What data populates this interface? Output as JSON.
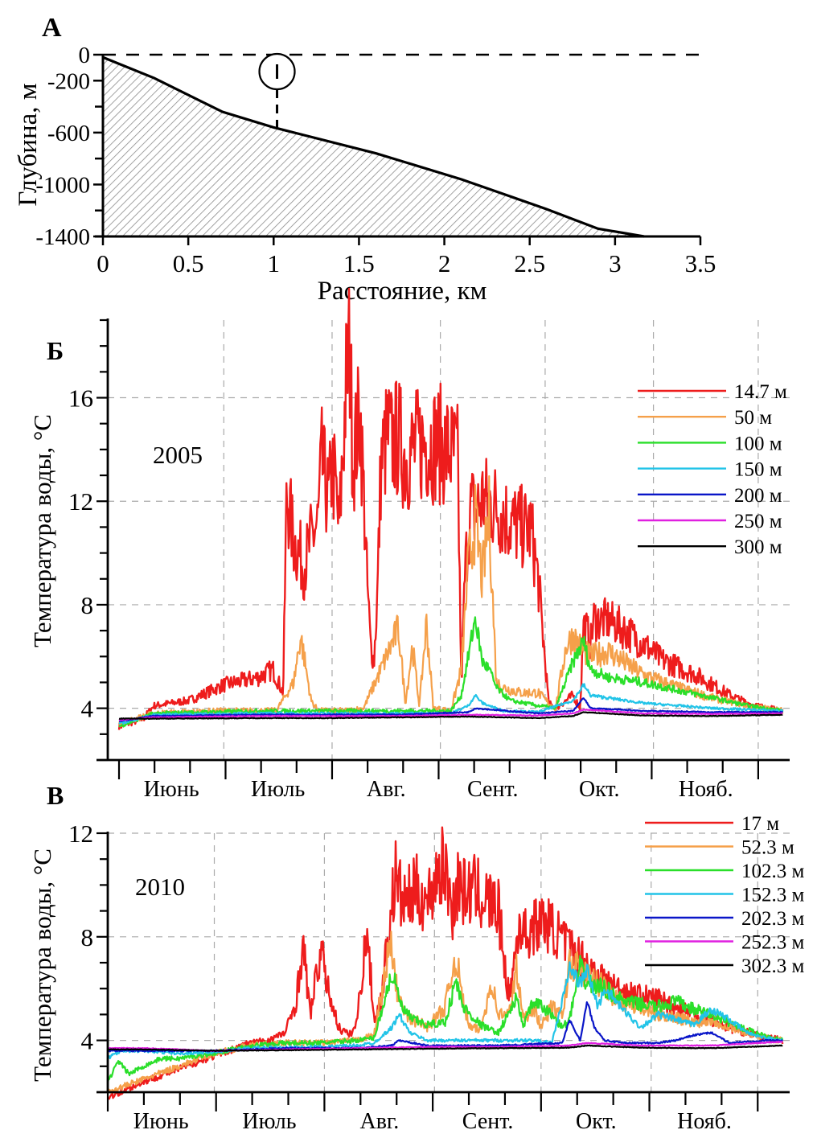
{
  "chart_data": [
    {
      "panel": "A",
      "type": "area",
      "panel_label": "А",
      "xlabel": "Расстояние, км",
      "ylabel": "Глубина, м",
      "xlim": [
        0,
        3.5
      ],
      "ylim": [
        -1400,
        0
      ],
      "xticks": [
        "0",
        "0.5",
        "1",
        "1.5",
        "2",
        "2.5",
        "3",
        "3.5"
      ],
      "xtick_values": [
        0,
        0.5,
        1,
        1.5,
        2,
        2.5,
        3,
        3.5
      ],
      "yticks": [
        "0",
        "-200",
        "-600",
        "-1000",
        "-1400"
      ],
      "ytick_values": [
        0,
        -200,
        -600,
        -1000,
        -1400
      ],
      "yminor_values": [
        -400,
        -800,
        -1200
      ],
      "surface_level": 0,
      "profile": {
        "x": [
          0,
          0.3,
          0.7,
          1.0,
          1.6,
          2.1,
          2.6,
          2.9,
          3.17
        ],
        "y": [
          -20,
          -180,
          -440,
          -560,
          -760,
          -960,
          -1190,
          -1340,
          -1400
        ]
      },
      "mooring": {
        "label": "I",
        "x": 1.02,
        "top": -130,
        "bottom": -560
      }
    },
    {
      "panel": "Б",
      "type": "line",
      "panel_label": "Б",
      "year_label": "2005",
      "ylabel": "Температура воды, °C",
      "ylim": [
        2,
        19
      ],
      "yticks": [
        "4",
        "8",
        "12",
        "16"
      ],
      "ytick_values": [
        4,
        8,
        12,
        16
      ],
      "grid": true,
      "months": [
        "Июнь",
        "Июль",
        "Авг.",
        "Сент.",
        "Окт.",
        "Нояб."
      ],
      "month_day_ranges": [
        [
          0,
          30
        ],
        [
          30,
          61
        ],
        [
          61,
          92
        ],
        [
          92,
          122
        ],
        [
          122,
          153
        ],
        [
          153,
          183
        ]
      ],
      "xlim_days": [
        0,
        192
      ],
      "legend_position": "top-right",
      "series": [
        {
          "name": "14.7 м",
          "color": "#ee1c1c",
          "x": [
            0,
            7,
            10,
            20,
            30,
            40,
            44,
            47,
            48,
            50,
            53,
            55,
            57,
            58,
            60,
            61,
            62,
            63,
            65,
            66,
            67,
            69,
            70,
            71,
            72,
            73,
            74,
            75,
            77,
            78,
            80,
            82,
            84,
            88,
            92,
            95,
            97,
            98,
            99,
            100,
            101,
            102,
            104,
            106,
            108,
            110,
            112,
            115,
            118,
            120,
            123,
            125,
            130,
            132,
            133,
            134,
            135,
            136,
            137,
            140,
            145,
            150,
            155,
            160,
            165,
            170,
            175,
            180,
            185,
            190
          ],
          "y": [
            3.3,
            3.6,
            4.1,
            4.3,
            4.9,
            5.2,
            5.5,
            4.6,
            12.3,
            10.5,
            9.5,
            10.5,
            11.2,
            13.5,
            12.0,
            13.3,
            12.6,
            10.8,
            16.5,
            18.0,
            13.5,
            15.5,
            12.5,
            9.0,
            6.5,
            5.8,
            8.5,
            13.5,
            14.6,
            14.2,
            14.5,
            13.6,
            14.0,
            14.3,
            14.2,
            13.9,
            13.6,
            4.8,
            9.0,
            11.0,
            11.8,
            11.5,
            12.1,
            11.9,
            11.8,
            11.5,
            11.2,
            11.0,
            10.9,
            9.0,
            4.2,
            4.0,
            4.5,
            4.0,
            7.2,
            7.0,
            6.5,
            7.5,
            7.4,
            7.4,
            7.0,
            6.5,
            5.9,
            5.6,
            5.3,
            4.9,
            4.5,
            4.2,
            4.0,
            3.9
          ]
        },
        {
          "name": "50 м",
          "color": "#f5a04a",
          "x": [
            0,
            10,
            30,
            45,
            50,
            52,
            55,
            57,
            60,
            65,
            70,
            75,
            80,
            82,
            84,
            86,
            88,
            90,
            95,
            98,
            100,
            102,
            104,
            106,
            108,
            110,
            115,
            120,
            123,
            125,
            128,
            130,
            133,
            135,
            140,
            150,
            160,
            170,
            180,
            190
          ],
          "y": [
            3.4,
            3.8,
            3.9,
            3.9,
            5.0,
            6.8,
            4.3,
            3.9,
            3.9,
            3.9,
            4.0,
            5.5,
            7.1,
            4.2,
            6.4,
            4.1,
            7.3,
            4.0,
            3.9,
            5.5,
            9.5,
            11.2,
            9.0,
            11.5,
            5.0,
            4.8,
            4.6,
            4.6,
            4.2,
            4.0,
            6.4,
            6.8,
            6.2,
            6.0,
            6.2,
            5.3,
            4.8,
            4.4,
            4.1,
            3.9
          ]
        },
        {
          "name": "100 м",
          "color": "#2adf2a",
          "x": [
            0,
            10,
            40,
            50,
            60,
            80,
            95,
            98,
            100,
            102,
            104,
            106,
            108,
            112,
            120,
            125,
            130,
            133,
            135,
            140,
            150,
            160,
            170,
            180,
            190
          ],
          "y": [
            3.3,
            3.8,
            3.9,
            3.9,
            3.9,
            3.9,
            3.9,
            4.5,
            6.0,
            7.5,
            5.8,
            5.5,
            4.8,
            4.3,
            4.1,
            4.0,
            5.8,
            6.6,
            5.5,
            5.2,
            5.0,
            4.7,
            4.4,
            4.1,
            3.9
          ]
        },
        {
          "name": "150 м",
          "color": "#22c4e8",
          "x": [
            0,
            10,
            40,
            60,
            80,
            95,
            100,
            102,
            104,
            110,
            120,
            130,
            133,
            135,
            140,
            150,
            160,
            170,
            180,
            190
          ],
          "y": [
            3.4,
            3.75,
            3.8,
            3.8,
            3.8,
            3.8,
            4.1,
            4.5,
            4.2,
            3.9,
            3.85,
            4.3,
            4.9,
            4.5,
            4.4,
            4.2,
            4.1,
            4.0,
            3.95,
            3.9
          ]
        },
        {
          "name": "200 м",
          "color": "#0a16c8",
          "x": [
            0,
            10,
            40,
            60,
            80,
            100,
            102,
            120,
            130,
            133,
            135,
            150,
            170,
            190
          ],
          "y": [
            3.5,
            3.7,
            3.75,
            3.75,
            3.75,
            3.85,
            4.0,
            3.8,
            3.9,
            4.4,
            4.0,
            3.9,
            3.85,
            3.85
          ]
        },
        {
          "name": "250 м",
          "color": "#e020e0",
          "x": [
            0,
            10,
            40,
            60,
            80,
            100,
            120,
            130,
            133,
            150,
            170,
            190
          ],
          "y": [
            3.55,
            3.65,
            3.7,
            3.7,
            3.7,
            3.75,
            3.72,
            3.8,
            3.95,
            3.8,
            3.78,
            3.8
          ]
        },
        {
          "name": "300 м",
          "color": "#000000",
          "x": [
            0,
            10,
            40,
            60,
            80,
            100,
            120,
            130,
            133,
            150,
            170,
            190
          ],
          "y": [
            3.6,
            3.6,
            3.62,
            3.62,
            3.65,
            3.68,
            3.62,
            3.7,
            3.85,
            3.72,
            3.7,
            3.75
          ]
        }
      ]
    },
    {
      "panel": "В",
      "type": "line",
      "panel_label": "В",
      "year_label": "2010",
      "ylabel": "Температура воды, °C",
      "ylim": [
        2,
        12
      ],
      "yticks": [
        "4",
        "8",
        "12"
      ],
      "ytick_values": [
        4,
        8,
        12
      ],
      "grid": true,
      "months": [
        "Июнь",
        "Июль",
        "Авг.",
        "Сент.",
        "Окт.",
        "Нояб."
      ],
      "month_day_ranges": [
        [
          0,
          30
        ],
        [
          30,
          61
        ],
        [
          61,
          92
        ],
        [
          92,
          122
        ],
        [
          122,
          153
        ],
        [
          153,
          183
        ]
      ],
      "xlim_days": [
        0,
        192
      ],
      "legend_position": "top-right",
      "series": [
        {
          "name": "17 м",
          "color": "#ee1c1c",
          "x": [
            0,
            10,
            20,
            30,
            40,
            45,
            50,
            53,
            55,
            57,
            60,
            62,
            65,
            68,
            70,
            73,
            75,
            77,
            79,
            81,
            83,
            85,
            87,
            90,
            93,
            95,
            97,
            99,
            100,
            103,
            107,
            110,
            113,
            116,
            118,
            120,
            123,
            126,
            130,
            133,
            135,
            140,
            145,
            150,
            155,
            160,
            165,
            170,
            175,
            180,
            185,
            190
          ],
          "y": [
            1.8,
            2.4,
            2.9,
            3.4,
            3.9,
            4.0,
            4.3,
            5.5,
            7.7,
            5.0,
            7.5,
            6.0,
            4.5,
            4.2,
            4.6,
            8.3,
            4.8,
            5.6,
            8.1,
            10.4,
            9.3,
            9.5,
            9.8,
            9.3,
            10.6,
            10.7,
            9.0,
            10.3,
            9.7,
            9.8,
            9.4,
            9.0,
            5.6,
            8.6,
            8.0,
            8.4,
            8.6,
            8.2,
            7.6,
            7.2,
            7.0,
            6.3,
            5.9,
            5.7,
            5.6,
            5.3,
            5.0,
            4.8,
            4.5,
            4.3,
            4.1,
            4.0
          ]
        },
        {
          "name": "52.3 м",
          "color": "#f5a04a",
          "x": [
            0,
            10,
            20,
            30,
            40,
            50,
            60,
            70,
            75,
            79,
            80,
            81,
            83,
            85,
            88,
            90,
            95,
            98,
            100,
            102,
            105,
            108,
            110,
            113,
            115,
            117,
            120,
            122,
            125,
            128,
            130,
            135,
            140,
            145,
            150,
            155,
            160,
            165,
            170,
            175,
            180,
            185,
            190
          ],
          "y": [
            2.0,
            2.5,
            3.0,
            3.5,
            3.8,
            3.9,
            3.9,
            4.0,
            4.2,
            7.3,
            7.6,
            6.2,
            5.2,
            4.8,
            4.7,
            4.5,
            5.3,
            7.3,
            5.5,
            4.5,
            4.4,
            6.3,
            5.0,
            5.0,
            6.8,
            4.8,
            5.3,
            4.5,
            5.3,
            4.9,
            7.0,
            6.5,
            6.0,
            5.5,
            5.2,
            5.0,
            4.9,
            4.7,
            4.8,
            4.5,
            4.3,
            4.1,
            4.0
          ]
        },
        {
          "name": "102.3 м",
          "color": "#2adf2a",
          "x": [
            0,
            3,
            6,
            10,
            15,
            20,
            25,
            30,
            40,
            50,
            60,
            70,
            75,
            79,
            80,
            83,
            86,
            90,
            95,
            98,
            100,
            105,
            108,
            110,
            115,
            117,
            120,
            125,
            128,
            130,
            133,
            135,
            140,
            145,
            150,
            155,
            160,
            165,
            170,
            175,
            180,
            185,
            190
          ],
          "y": [
            2.4,
            3.2,
            2.7,
            3.0,
            3.3,
            3.3,
            3.4,
            3.5,
            3.8,
            3.9,
            3.9,
            4.0,
            4.1,
            6.1,
            6.6,
            5.2,
            4.8,
            4.6,
            4.7,
            6.3,
            5.3,
            4.6,
            4.4,
            4.3,
            5.6,
            4.6,
            5.5,
            5.0,
            4.5,
            4.8,
            6.8,
            6.2,
            6.0,
            5.5,
            5.4,
            5.3,
            5.5,
            5.2,
            5.0,
            4.7,
            4.4,
            4.2,
            4.0
          ]
        },
        {
          "name": "152.3 м",
          "color": "#22c4e8",
          "x": [
            0,
            2,
            5,
            10,
            20,
            30,
            40,
            60,
            70,
            75,
            80,
            82,
            85,
            90,
            95,
            100,
            110,
            120,
            125,
            128,
            130,
            133,
            135,
            138,
            140,
            145,
            150,
            155,
            160,
            165,
            170,
            175,
            180,
            185,
            190
          ],
          "y": [
            3.3,
            3.5,
            3.6,
            3.6,
            3.5,
            3.55,
            3.7,
            3.75,
            3.8,
            3.9,
            4.5,
            5.0,
            4.3,
            4.0,
            4.0,
            4.0,
            4.0,
            4.0,
            3.9,
            5.5,
            6.8,
            6.2,
            6.7,
            5.3,
            6.0,
            5.2,
            4.5,
            5.0,
            4.8,
            4.6,
            5.2,
            4.8,
            4.3,
            4.1,
            4.0
          ]
        },
        {
          "name": "202.3 м",
          "color": "#0a16c8",
          "x": [
            0,
            10,
            30,
            50,
            70,
            80,
            82,
            90,
            110,
            128,
            130,
            133,
            135,
            137,
            140,
            145,
            150,
            155,
            160,
            165,
            170,
            175,
            180,
            185,
            190
          ],
          "y": [
            3.6,
            3.6,
            3.6,
            3.7,
            3.7,
            3.8,
            4.0,
            3.8,
            3.8,
            3.9,
            4.8,
            4.0,
            5.5,
            4.5,
            4.0,
            3.9,
            3.9,
            3.9,
            4.0,
            4.2,
            4.3,
            3.9,
            3.95,
            4.0,
            4.0
          ]
        },
        {
          "name": "252.3 м",
          "color": "#e020e0",
          "x": [
            0,
            10,
            30,
            50,
            70,
            90,
            110,
            130,
            135,
            150,
            170,
            190
          ],
          "y": [
            3.7,
            3.7,
            3.6,
            3.65,
            3.7,
            3.75,
            3.75,
            3.8,
            3.9,
            3.8,
            3.8,
            3.95
          ]
        },
        {
          "name": "302.3 м",
          "color": "#000000",
          "x": [
            0,
            10,
            30,
            50,
            70,
            90,
            110,
            130,
            135,
            150,
            170,
            190
          ],
          "y": [
            3.65,
            3.65,
            3.6,
            3.62,
            3.65,
            3.68,
            3.7,
            3.72,
            3.8,
            3.72,
            3.7,
            3.8
          ]
        }
      ]
    }
  ]
}
